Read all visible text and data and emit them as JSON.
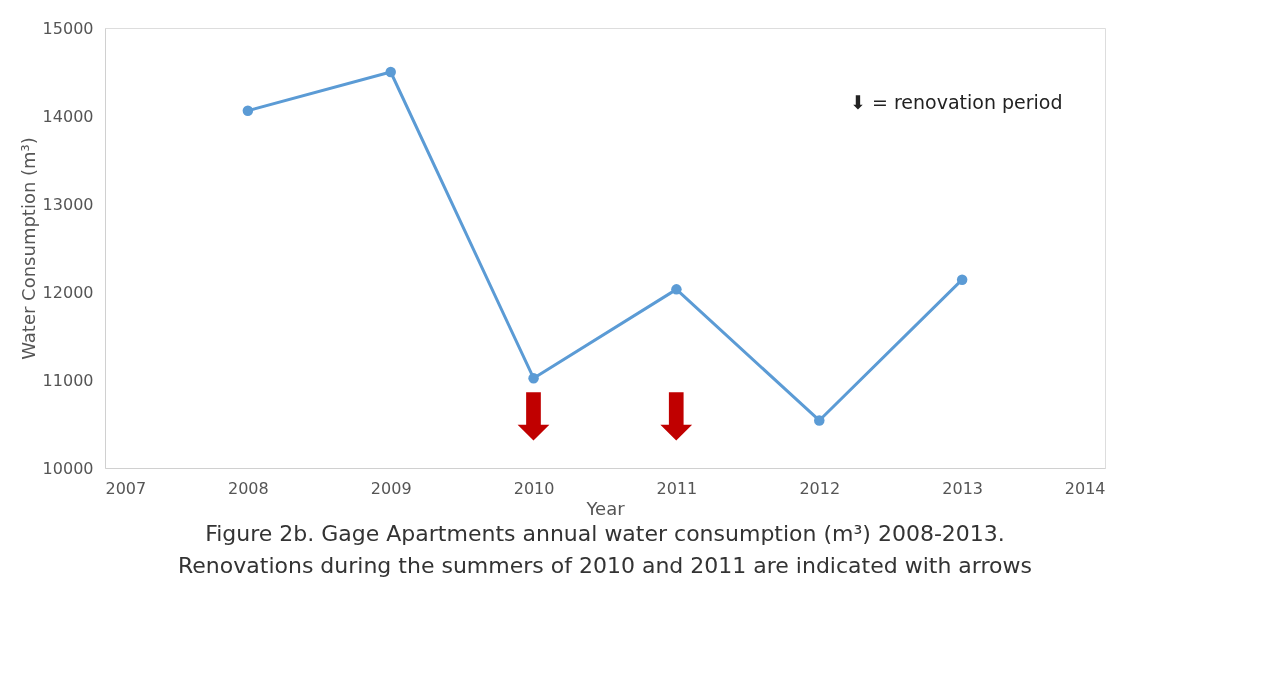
{
  "chart_data": {
    "type": "line",
    "title": "Figure 2b. Gage Apartments annual water consumption (m³) 2008-2013.\nRenovations during the summers of 2010 and 2011 are indicated with arrows",
    "xlabel": "Year",
    "ylabel": "Water Consumption (m³)",
    "x": [
      2008,
      2009,
      2010,
      2011,
      2012,
      2013
    ],
    "series": [
      {
        "color": "#5b9bd5",
        "values": [
          14060,
          14500,
          11020,
          12030,
          10540,
          12140
        ]
      }
    ],
    "xlim": [
      2007,
      2014
    ],
    "xticks": [
      2007,
      2008,
      2009,
      2010,
      2011,
      2012,
      2013,
      2014
    ],
    "ylim": [
      10000,
      15000
    ],
    "yticks": [
      10000,
      11000,
      12000,
      13000,
      14000,
      15000
    ],
    "grid": false,
    "marker": "circle",
    "line_style": "solid",
    "annotations": [
      "⬇",
      "⬇",
      "⬇ = renovation period"
    ]
  }
}
